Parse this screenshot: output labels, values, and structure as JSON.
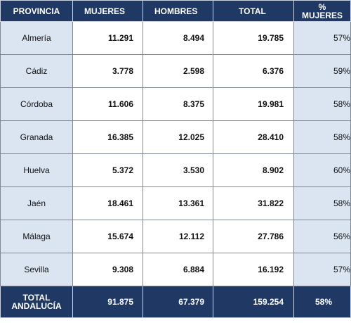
{
  "headers": {
    "provincia": "PROVINCIA",
    "mujeres": "MUJERES",
    "hombres": "HOMBRES",
    "total": "TOTAL",
    "pct_line1": "%",
    "pct_line2": "MUJERES"
  },
  "rows": [
    {
      "provincia": "Almería",
      "mujeres": "11.291",
      "hombres": "8.494",
      "total": "19.785",
      "pct": "57%"
    },
    {
      "provincia": "Cádiz",
      "mujeres": "3.778",
      "hombres": "2.598",
      "total": "6.376",
      "pct": "59%"
    },
    {
      "provincia": "Córdoba",
      "mujeres": "11.606",
      "hombres": "8.375",
      "total": "19.981",
      "pct": "58%"
    },
    {
      "provincia": "Granada",
      "mujeres": "16.385",
      "hombres": "12.025",
      "total": "28.410",
      "pct": "58%"
    },
    {
      "provincia": "Huelva",
      "mujeres": "5.372",
      "hombres": "3.530",
      "total": "8.902",
      "pct": "60%"
    },
    {
      "provincia": "Jaén",
      "mujeres": "18.461",
      "hombres": "13.361",
      "total": "31.822",
      "pct": "58%"
    },
    {
      "provincia": "Málaga",
      "mujeres": "15.674",
      "hombres": "12.112",
      "total": "27.786",
      "pct": "56%"
    },
    {
      "provincia": "Sevilla",
      "mujeres": "9.308",
      "hombres": "6.884",
      "total": "16.192",
      "pct": "57%"
    }
  ],
  "footer": {
    "label_line1": "TOTAL",
    "label_line2": "ANDALUCÍA",
    "mujeres": "91.875",
    "hombres": "67.379",
    "total": "159.254",
    "pct": "58%"
  },
  "colors": {
    "header_bg": "#1f3864",
    "province_bg": "#dbe5f1",
    "header_text": "#ffffff"
  }
}
